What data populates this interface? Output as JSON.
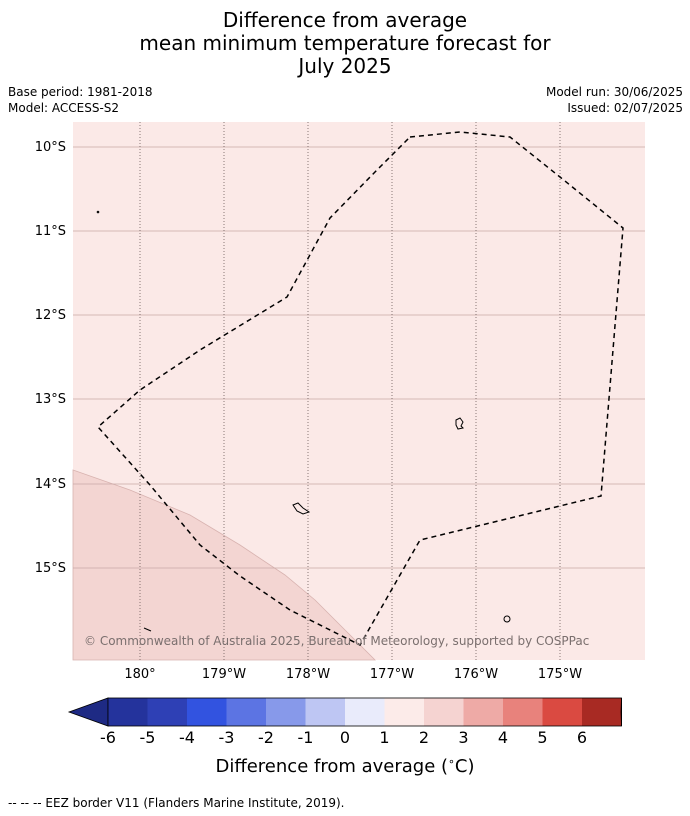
{
  "title": {
    "line1": "Difference from average",
    "line2": "mean minimum temperature forecast for",
    "line3": "July 2025"
  },
  "meta": {
    "base_period": "Base period: 1981-2018",
    "model": "Model: ACCESS-S2",
    "model_run": "Model run: 30/06/2025",
    "issued": "Issued: 02/07/2025"
  },
  "map": {
    "lat_labels": [
      "10°S",
      "11°S",
      "12°S",
      "13°S",
      "14°S",
      "15°S"
    ],
    "lon_labels": [
      "180°",
      "179°W",
      "178°W",
      "177°W",
      "176°W",
      "175°W"
    ],
    "background_color": "#fbe9e7",
    "anomaly_region_color": "#f3d5d2",
    "copyright": "© Commonwealth of Australia 2025, Bureau of Meteorology, supported by COSPPac"
  },
  "colorbar": {
    "tick_labels": [
      "-6",
      "-5",
      "-4",
      "-3",
      "-2",
      "-1",
      "0",
      "1",
      "2",
      "3",
      "4",
      "5",
      "6"
    ],
    "colors": [
      "#24339c",
      "#2e40b5",
      "#3253e0",
      "#5c74e3",
      "#8799ea",
      "#bec6f3",
      "#e9ebfb",
      "#fcebe9",
      "#f5d3d1",
      "#eeaaa6",
      "#e8827c",
      "#da4a41",
      "#a82a23"
    ],
    "extend_low_color": "#1e2a84",
    "extend_high_color": "#7b1a1a",
    "label": "Difference from average (",
    "label_degree": "∘",
    "label_unit": "C)"
  },
  "footnote": "-- -- -- EEZ border V11 (Flanders Marine Institute, 2019)."
}
